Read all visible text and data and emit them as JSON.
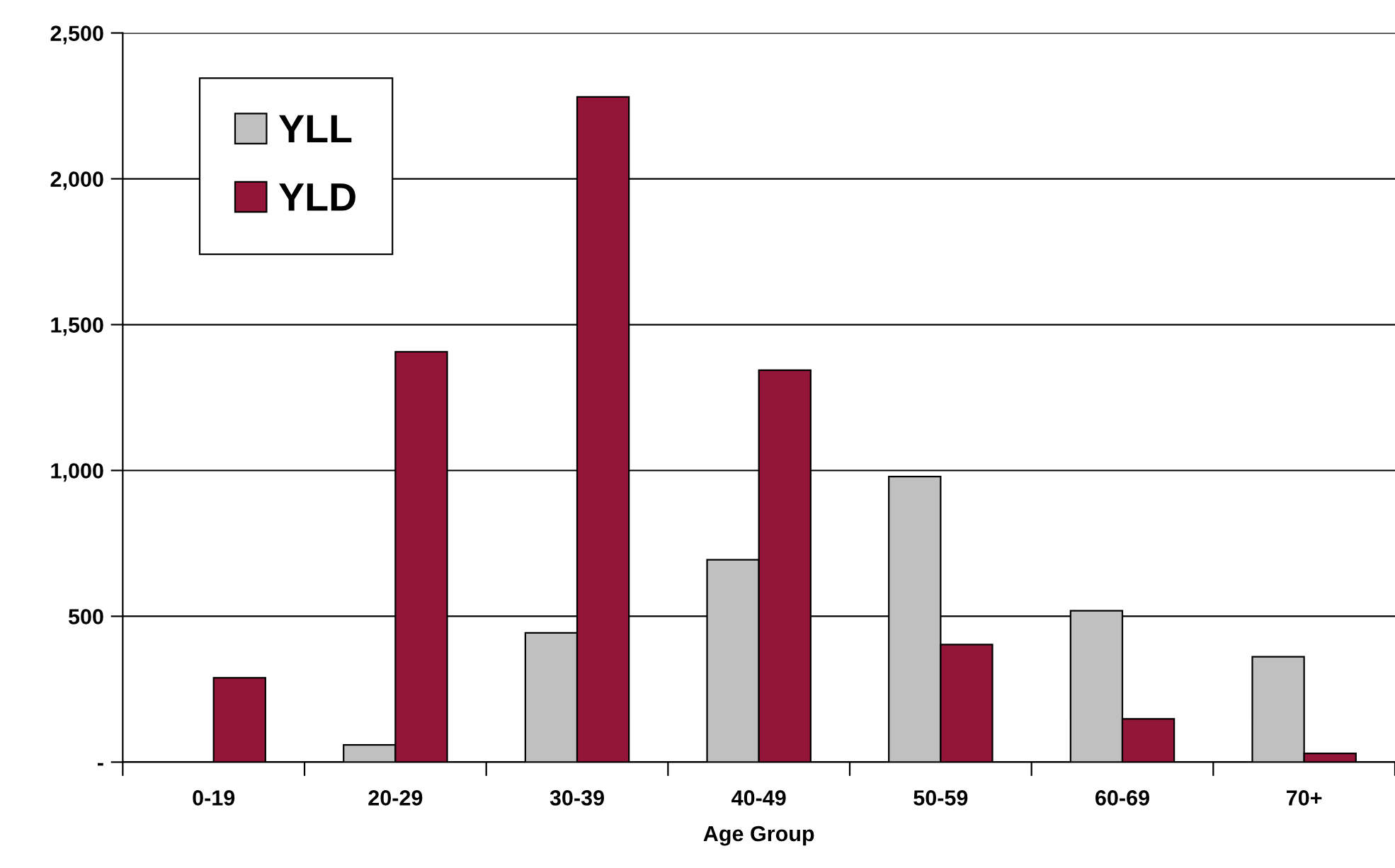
{
  "chart_data": {
    "type": "bar",
    "xlabel": "Age Group",
    "categories": [
      "0-19",
      "20-29",
      "30-39",
      "40-49",
      "50-59",
      "60-69",
      "70+"
    ],
    "series": [
      {
        "name": "YLL",
        "color": "#c0c0c0",
        "values": [
          null,
          59,
          443,
          694,
          979,
          519,
          361
        ]
      },
      {
        "name": "YLD",
        "color": "#931638",
        "values": [
          289,
          1407,
          2281,
          1344,
          403,
          148,
          30
        ]
      }
    ],
    "ylim": [
      0,
      2500
    ],
    "yticks": [
      {
        "value": 0,
        "label": "-"
      },
      {
        "value": 500,
        "label": "500"
      },
      {
        "value": 1000,
        "label": "1,000"
      },
      {
        "value": 1500,
        "label": "1,500"
      },
      {
        "value": 2000,
        "label": "2,000"
      },
      {
        "value": 2500,
        "label": "2,500"
      }
    ],
    "grid": "y",
    "legend": "top left"
  }
}
